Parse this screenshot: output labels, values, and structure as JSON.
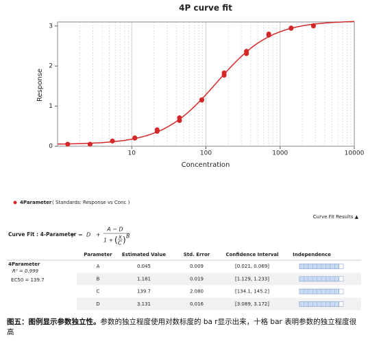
{
  "chart_data": {
    "type": "scatter",
    "title": "4P curve fit",
    "x_label": "Concentration",
    "y_label": "Response",
    "xlim": [
      1,
      10000
    ],
    "ylim": [
      0,
      3.1
    ],
    "xticks": [
      10,
      100,
      1000,
      10000
    ],
    "yticks": [
      0,
      1,
      2,
      3
    ],
    "log_x": true,
    "grid": true,
    "series": [
      {
        "name": "4Parameter",
        "color": "#d62728",
        "x": [
          1.37,
          1.37,
          2.74,
          2.74,
          5.49,
          5.49,
          11,
          11,
          22,
          22,
          44,
          44,
          88,
          88,
          176,
          176,
          352,
          352,
          703,
          703,
          1406,
          1406,
          2813,
          2813
        ],
        "values": [
          0.05,
          0.05,
          0.05,
          0.05,
          0.13,
          0.13,
          0.2,
          0.21,
          0.37,
          0.41,
          0.64,
          0.71,
          1.15,
          1.16,
          1.77,
          1.83,
          2.31,
          2.37,
          2.77,
          2.8,
          2.94,
          2.95,
          3.0,
          3.01
        ]
      }
    ],
    "legend_note": "( Standards: Response vs Conc )"
  },
  "results_toggle": "Curve Fit Results ▲",
  "fit": {
    "label": "Curve Fit : 4-Parameter",
    "lhs": "y",
    "eq": "=",
    "d": "D",
    "plus": "+",
    "numerator": "A − D",
    "denom_prefix": "1 +",
    "frac_x": "x",
    "frac_c": "C",
    "exponent": "B"
  },
  "table": {
    "headers": [
      "Parameter",
      "Estimated Value",
      "Std. Error",
      "Confidence Interval",
      "Independence"
    ],
    "model": "4Parameter",
    "r2": "R² = 0.999",
    "ec50": "EC50 = 139.7",
    "independence_max": 10,
    "rows": [
      {
        "parameter": "A",
        "estimate": 0.045,
        "std_error": "0.009",
        "interval": "[0.021, 0.069]",
        "independence": 9
      },
      {
        "parameter": "B",
        "estimate": 1.181,
        "std_error": "0.019",
        "interval": "[1.129, 1.233]",
        "independence": 9
      },
      {
        "parameter": "C",
        "estimate": 139.7,
        "std_error": "2.080",
        "interval": "[134.1, 145.2]",
        "independence": 9
      },
      {
        "parameter": "D",
        "estimate": 3.131,
        "std_error": "0.016",
        "interval": "[3.089, 3.172]",
        "independence": 9
      }
    ]
  },
  "caption": {
    "bold": "图五：图例显示参数独立性。",
    "text": "参数的独立程度使用对数标度的 ba r显示出来，十格 bar 表明参数的独立程度很高"
  }
}
